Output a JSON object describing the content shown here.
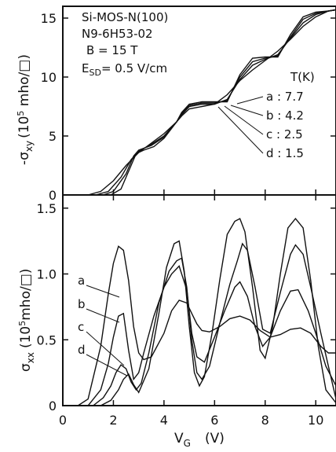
{
  "chart_data": [
    {
      "type": "line",
      "panel": "top",
      "ylabel_main": "-σ",
      "ylabel_sub": "xy",
      "ylabel_unit": "(10",
      "ylabel_exp": "5",
      "ylabel_rest": " mho/□)",
      "ylim": [
        0,
        16
      ],
      "xlim": [
        0,
        10.8
      ],
      "yticks": [
        "0",
        "5",
        "10",
        "15"
      ],
      "yticks_values": [
        0,
        5,
        10,
        15
      ],
      "annotation": {
        "line1": "Si-MOS-N(100)",
        "line2": "N9-6H53-02",
        "line3": "B = 15   T",
        "line4_main": "E",
        "line4_sub": "SD",
        "line4_rest": "= 0.5  V/cm"
      },
      "legend_title": "T(K)",
      "series": [
        {
          "name": "a : 7.7",
          "x": [
            1.0,
            1.5,
            2.0,
            2.5,
            3.0,
            3.5,
            4.0,
            4.5,
            4.7,
            5.0,
            5.5,
            6.0,
            6.5,
            7.0,
            7.5,
            8.0,
            8.5,
            9.0,
            9.5,
            10.0,
            10.5,
            10.8
          ],
          "y": [
            0,
            0.3,
            1.2,
            2.5,
            3.6,
            4.4,
            5.2,
            6.2,
            6.7,
            7.3,
            7.5,
            7.7,
            8.5,
            9.7,
            10.6,
            11.4,
            12.2,
            13.2,
            14.3,
            15.1,
            15.6,
            15.7
          ]
        },
        {
          "name": "b : 4.2",
          "x": [
            1.3,
            1.8,
            2.3,
            2.7,
            3.0,
            3.5,
            4.0,
            4.5,
            4.7,
            5.0,
            5.5,
            6.0,
            6.5,
            7.0,
            7.5,
            8.0,
            8.5,
            9.0,
            9.5,
            10.0,
            10.5,
            10.8
          ],
          "y": [
            0,
            0.3,
            1.5,
            3.0,
            3.7,
            4.3,
            5.0,
            6.2,
            6.8,
            7.5,
            7.7,
            7.7,
            8.1,
            9.8,
            11.0,
            11.5,
            11.9,
            13.3,
            14.6,
            15.3,
            15.6,
            15.7
          ]
        },
        {
          "name": "c : 2.5",
          "x": [
            1.6,
            2.0,
            2.5,
            2.8,
            3.0,
            3.5,
            4.0,
            4.5,
            4.7,
            5.0,
            5.5,
            6.0,
            6.5,
            7.0,
            7.5,
            8.0,
            8.5,
            9.0,
            9.5,
            10.0,
            10.5,
            10.8
          ],
          "y": [
            0,
            0.3,
            1.8,
            3.3,
            3.8,
            4.2,
            4.9,
            6.2,
            6.9,
            7.6,
            7.8,
            7.8,
            8.0,
            10.0,
            11.3,
            11.6,
            11.8,
            13.4,
            14.9,
            15.4,
            15.6,
            15.7
          ]
        },
        {
          "name": "d : 1.5",
          "x": [
            1.9,
            2.3,
            2.7,
            2.9,
            3.2,
            3.6,
            4.0,
            4.5,
            4.7,
            5.0,
            5.5,
            6.0,
            6.5,
            7.0,
            7.5,
            8.0,
            8.5,
            9.0,
            9.5,
            10.0,
            10.5,
            10.8
          ],
          "y": [
            0,
            0.5,
            2.5,
            3.5,
            3.8,
            4.1,
            4.8,
            6.2,
            7.0,
            7.7,
            7.9,
            7.9,
            7.9,
            10.2,
            11.6,
            11.7,
            11.7,
            13.6,
            15.1,
            15.5,
            15.6,
            15.7
          ]
        }
      ]
    },
    {
      "type": "line",
      "panel": "bottom",
      "ylabel_main": "σ",
      "ylabel_sub": "xx",
      "ylabel_unit": "(10",
      "ylabel_exp": "5",
      "ylabel_rest": "mho/□)",
      "xlabel_main": "V",
      "xlabel_sub": "G",
      "xlabel_rest": "(V)",
      "ylim": [
        0,
        1.6
      ],
      "xlim": [
        0,
        10.8
      ],
      "yticks": [
        "0",
        "0.5",
        "1.0",
        "1.5"
      ],
      "yticks_values": [
        0,
        0.5,
        1.0,
        1.5
      ],
      "xticks": [
        "0",
        "2",
        "4",
        "6",
        "8",
        "10"
      ],
      "xticks_values": [
        0,
        2,
        4,
        6,
        8,
        10
      ],
      "series": [
        {
          "name": "a",
          "x": [
            0.6,
            1.0,
            1.5,
            1.8,
            2.0,
            2.2,
            2.4,
            2.6,
            2.8,
            3.0,
            3.2,
            3.5,
            4.0,
            4.3,
            4.6,
            4.9,
            5.1,
            5.3,
            5.5,
            5.8,
            6.2,
            6.6,
            7.0,
            7.4,
            7.8,
            8.2,
            8.6,
            9.0,
            9.4,
            9.8,
            10.2,
            10.5,
            10.8
          ],
          "y": [
            0,
            0.05,
            0.45,
            0.85,
            1.08,
            1.21,
            1.18,
            0.95,
            0.6,
            0.4,
            0.35,
            0.37,
            0.55,
            0.72,
            0.8,
            0.78,
            0.7,
            0.62,
            0.57,
            0.56,
            0.6,
            0.66,
            0.68,
            0.65,
            0.57,
            0.52,
            0.54,
            0.58,
            0.59,
            0.55,
            0.45,
            0.4,
            0.4
          ]
        },
        {
          "name": "b",
          "x": [
            1.0,
            1.5,
            1.8,
            2.0,
            2.2,
            2.4,
            2.6,
            2.8,
            3.0,
            3.2,
            3.6,
            4.0,
            4.3,
            4.6,
            4.9,
            5.1,
            5.3,
            5.6,
            6.0,
            6.4,
            6.8,
            7.0,
            7.3,
            7.6,
            7.9,
            8.2,
            8.6,
            9.0,
            9.3,
            9.7,
            10.0,
            10.4,
            10.8
          ],
          "y": [
            0,
            0.12,
            0.32,
            0.52,
            0.68,
            0.7,
            0.42,
            0.2,
            0.25,
            0.4,
            0.68,
            0.9,
            1.0,
            1.06,
            0.88,
            0.55,
            0.37,
            0.33,
            0.52,
            0.72,
            0.9,
            0.94,
            0.83,
            0.6,
            0.45,
            0.52,
            0.72,
            0.87,
            0.88,
            0.72,
            0.55,
            0.3,
            0.15
          ]
        },
        {
          "name": "c",
          "x": [
            1.2,
            1.6,
            1.9,
            2.1,
            2.3,
            2.5,
            2.7,
            2.9,
            3.1,
            3.4,
            3.8,
            4.2,
            4.5,
            4.7,
            4.9,
            5.1,
            5.3,
            5.5,
            5.8,
            6.2,
            6.6,
            6.9,
            7.1,
            7.3,
            7.6,
            7.9,
            8.2,
            8.6,
            9.0,
            9.2,
            9.5,
            9.8,
            10.2,
            10.5,
            10.8
          ],
          "y": [
            0,
            0.06,
            0.15,
            0.25,
            0.31,
            0.28,
            0.18,
            0.12,
            0.17,
            0.4,
            0.78,
            1.02,
            1.1,
            1.12,
            0.9,
            0.5,
            0.25,
            0.2,
            0.3,
            0.62,
            0.92,
            1.1,
            1.23,
            1.18,
            0.9,
            0.58,
            0.55,
            0.86,
            1.15,
            1.22,
            1.15,
            0.9,
            0.55,
            0.3,
            0.05
          ]
        },
        {
          "name": "d",
          "x": [
            1.5,
            1.9,
            2.2,
            2.4,
            2.6,
            2.8,
            3.0,
            3.4,
            3.8,
            4.1,
            4.4,
            4.6,
            4.8,
            5.0,
            5.2,
            5.4,
            5.6,
            5.9,
            6.2,
            6.5,
            6.8,
            7.0,
            7.2,
            7.5,
            7.8,
            8.0,
            8.3,
            8.6,
            8.9,
            9.2,
            9.5,
            9.8,
            10.1,
            10.4,
            10.8
          ],
          "y": [
            0,
            0.04,
            0.12,
            0.2,
            0.24,
            0.16,
            0.1,
            0.28,
            0.7,
            1.05,
            1.23,
            1.25,
            1.02,
            0.6,
            0.25,
            0.15,
            0.22,
            0.55,
            0.95,
            1.3,
            1.4,
            1.42,
            1.32,
            0.9,
            0.42,
            0.36,
            0.6,
            1.0,
            1.35,
            1.42,
            1.35,
            0.95,
            0.45,
            0.12,
            0.02
          ]
        }
      ]
    }
  ]
}
